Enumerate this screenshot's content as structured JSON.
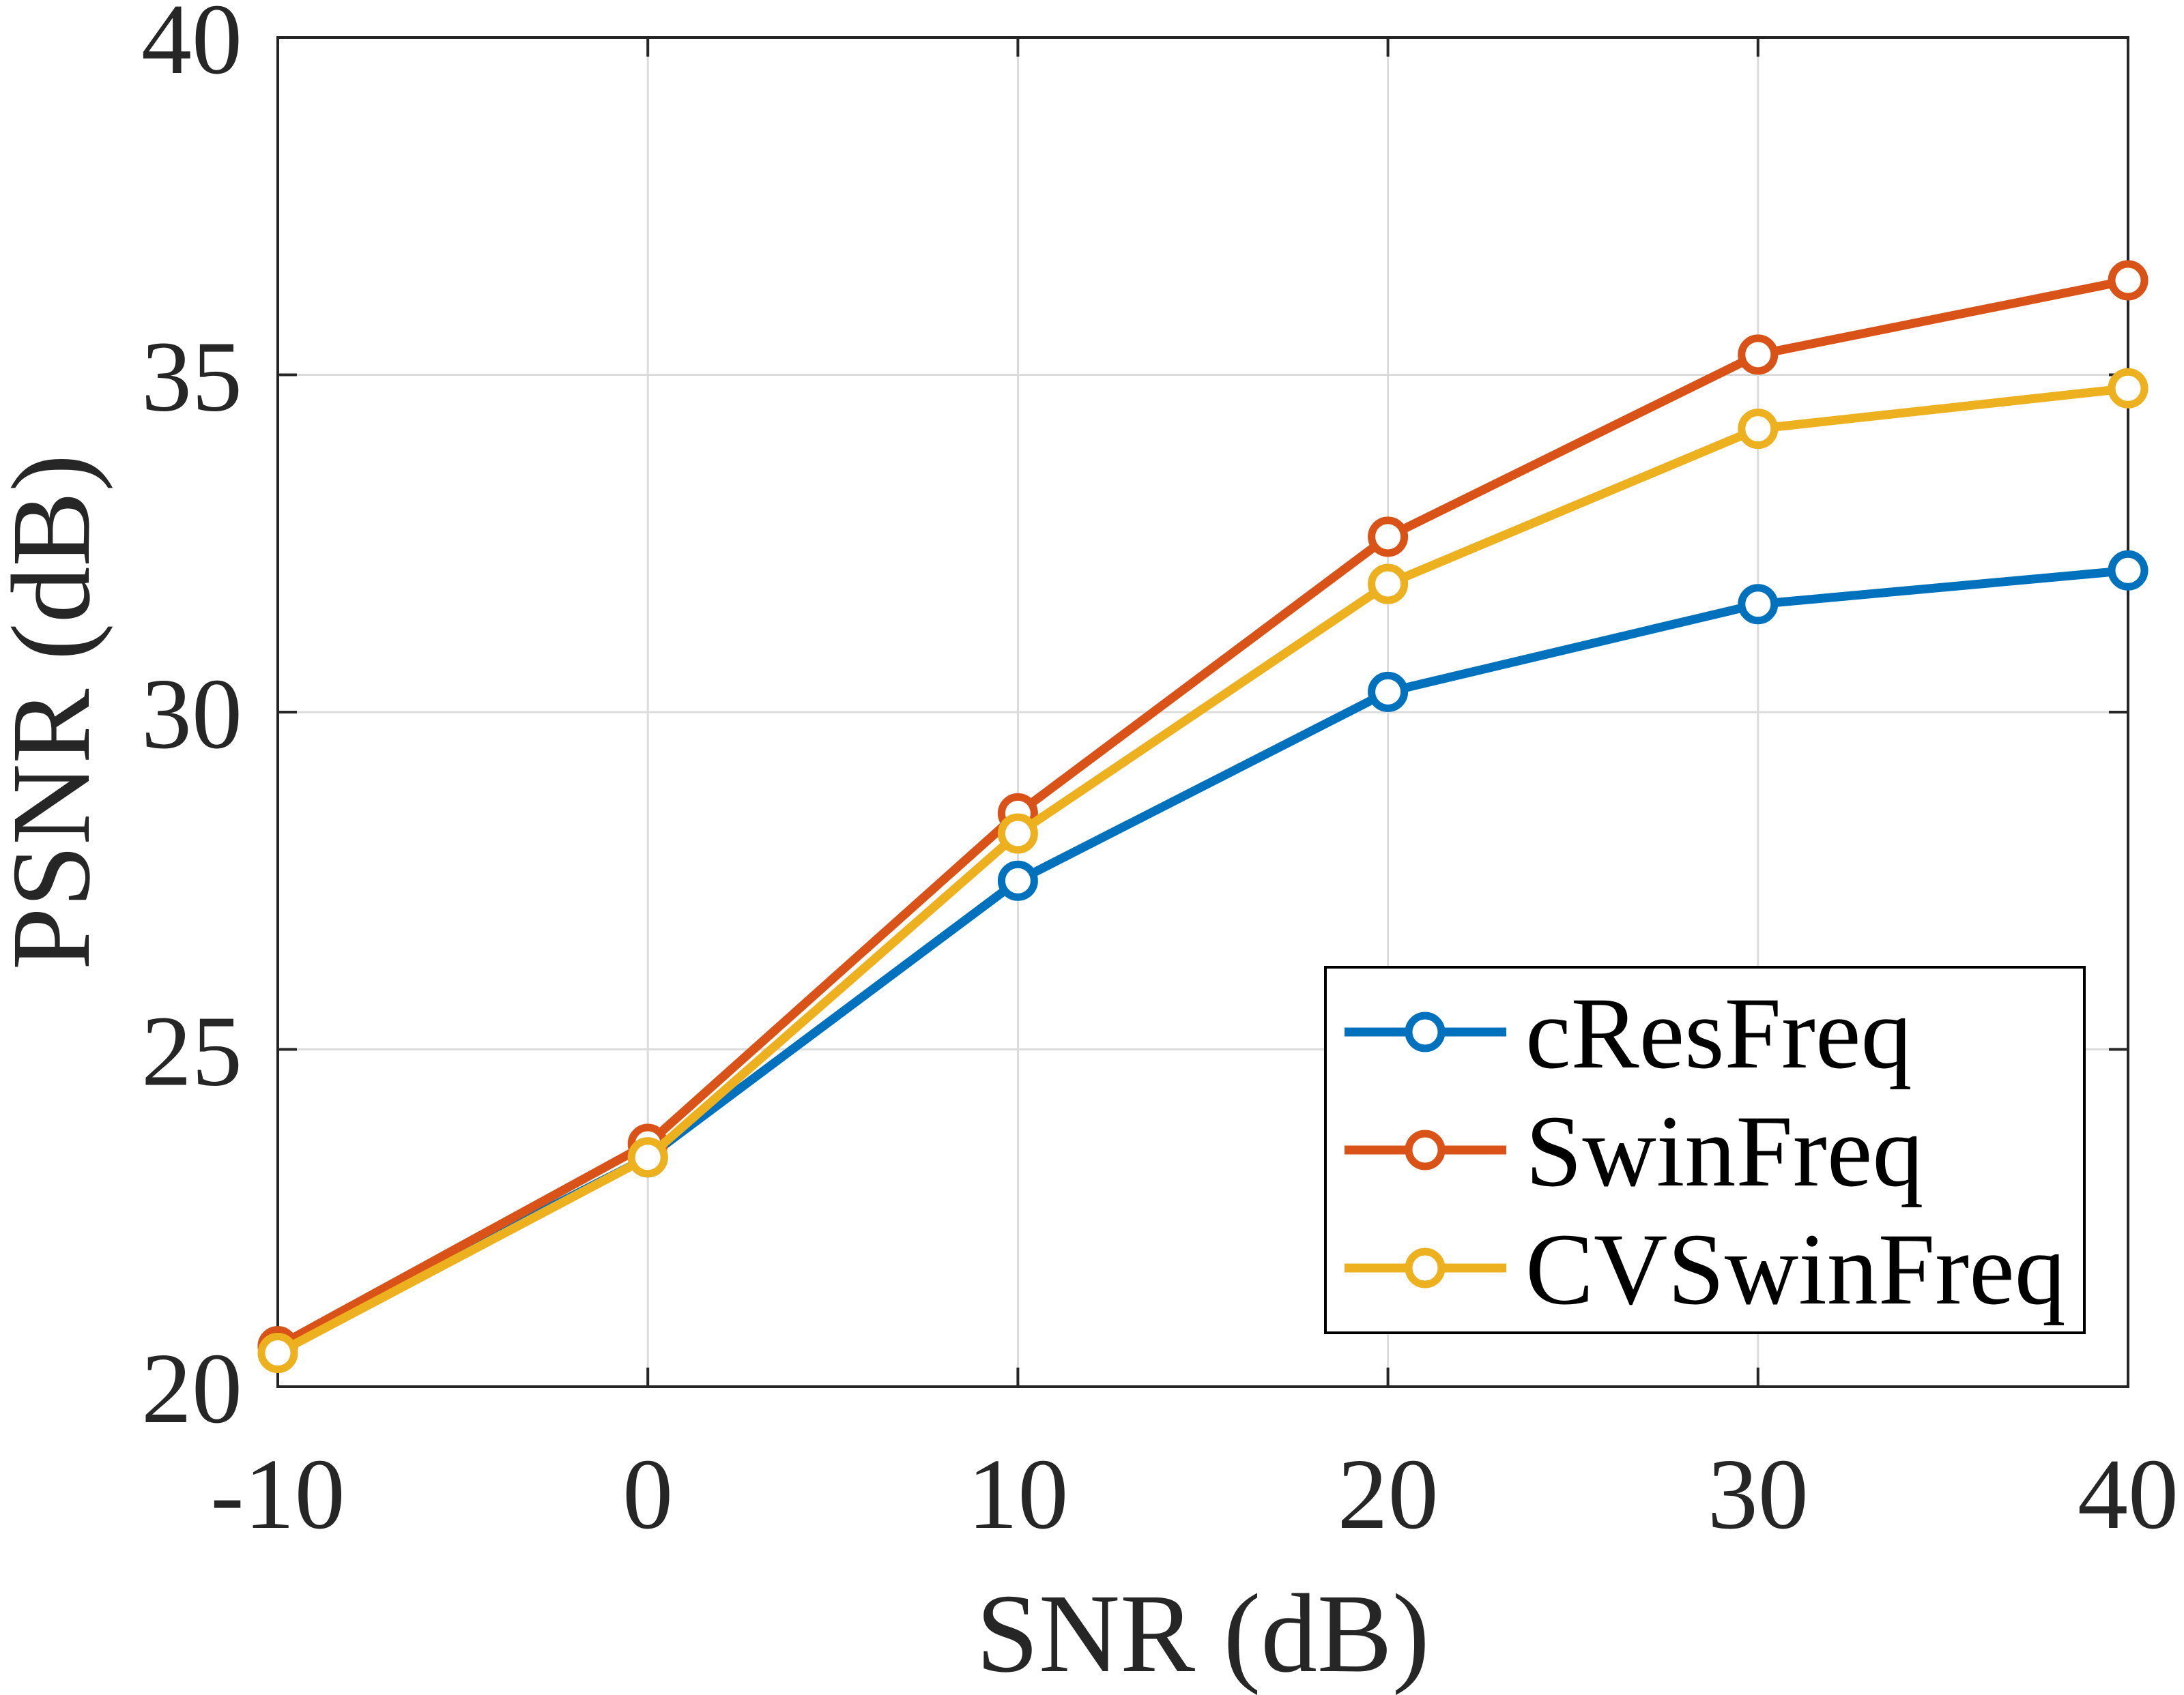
{
  "chart_data": {
    "type": "line",
    "title": "",
    "xlabel": "SNR (dB)",
    "ylabel": "PSNR (dB)",
    "x": [
      -10,
      0,
      10,
      20,
      30,
      40
    ],
    "xlim": [
      -10,
      40
    ],
    "ylim": [
      20,
      40
    ],
    "xticks": [
      "-10",
      "0",
      "10",
      "20",
      "30",
      "40"
    ],
    "yticks": [
      "20",
      "25",
      "30",
      "35",
      "40"
    ],
    "grid": true,
    "legend_position": "lower-right",
    "series": [
      {
        "name": "cResFreq",
        "color": "#0072BD",
        "marker": "circle",
        "values": [
          20.6,
          23.4,
          27.5,
          30.3,
          31.6,
          32.1
        ]
      },
      {
        "name": "SwinFreq",
        "color": "#D95319",
        "marker": "circle",
        "values": [
          20.6,
          23.6,
          28.5,
          32.6,
          35.3,
          36.4
        ]
      },
      {
        "name": "CVSwinFreq",
        "color": "#EDB120",
        "marker": "circle",
        "values": [
          20.5,
          23.4,
          28.2,
          31.9,
          34.2,
          34.8
        ]
      }
    ]
  }
}
